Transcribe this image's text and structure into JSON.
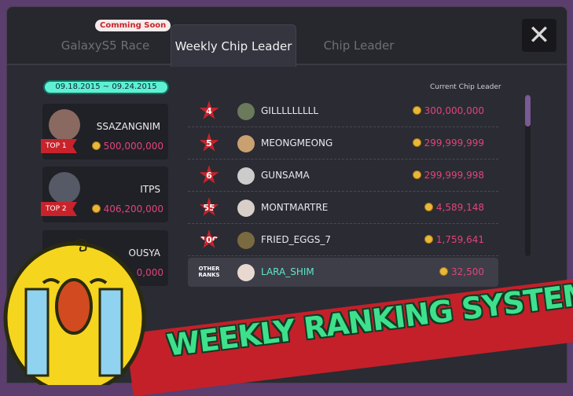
{
  "tabs": [
    {
      "label": "GalaxyS5 Race",
      "badge": "Comming Soon"
    },
    {
      "label": "Weekly Chip Leader",
      "active": true
    },
    {
      "label": "Chip Leader"
    }
  ],
  "close_icon": "close-icon",
  "date_range": "09.18.2015 ~ 09.24.2015",
  "current_chip_leader_label": "Current Chip Leader",
  "top_cards": [
    {
      "rank": "TOP 1",
      "name": "SSAZANGNIM",
      "chips": "500,000,000"
    },
    {
      "rank": "TOP 2",
      "name": "ITPS",
      "chips": "406,200,000"
    },
    {
      "rank": "",
      "name": "OUSYA",
      "chips": "0,000"
    }
  ],
  "rows": [
    {
      "rank": "4",
      "name": "GILLLLLLLLL",
      "chips": "300,000,000"
    },
    {
      "rank": "5",
      "name": "MEONGMEONG",
      "chips": "299,999,999"
    },
    {
      "rank": "6",
      "name": "GUNSAMA",
      "chips": "299,999,998"
    },
    {
      "rank": "55",
      "name": "MONTMARTRE",
      "chips": "4,589,148"
    },
    {
      "rank": "100",
      "name": "FRIED_EGGS_7",
      "chips": "1,759,641"
    }
  ],
  "me": {
    "rank": "OTHER RANKS",
    "name": "LARA_SHIM",
    "chips": "32,500"
  },
  "banner": "WEEKLY RANKING SYSTEM",
  "colors": {
    "accent": "#5ef0d2",
    "chips": "#e0457a",
    "ribbon": "#c8232b",
    "banner_text": "#3fe08c"
  }
}
